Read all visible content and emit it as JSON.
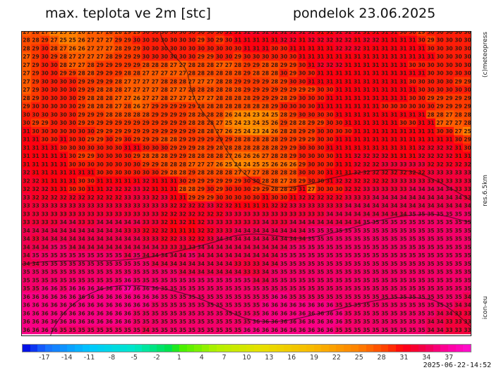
{
  "header": {
    "title": "max. teplota ve 2m [stc]",
    "date": "pondelok 23.06.2025"
  },
  "side_labels": {
    "copyright": "(c)meteopress",
    "resolution": "res.6.5km",
    "model": "icon-eu"
  },
  "timestamp": "2025-06-22-14:52",
  "colorbar": {
    "range": [
      -20,
      40
    ],
    "ticks": [
      "-17",
      "-14",
      "-11",
      "-8",
      "-5",
      "-2",
      "1",
      "4",
      "7",
      "10",
      "13",
      "16",
      "19",
      "22",
      "25",
      "28",
      "31",
      "34",
      "37"
    ],
    "stops": [
      [
        -20,
        "#0000e0"
      ],
      [
        -17,
        "#1a6cff"
      ],
      [
        -11,
        "#00c8ff"
      ],
      [
        -5,
        "#00e8c8"
      ],
      [
        0,
        "#00e040"
      ],
      [
        1,
        "#40f000"
      ],
      [
        6,
        "#b4f000"
      ],
      [
        12,
        "#e8e000"
      ],
      [
        19,
        "#f8b800"
      ],
      [
        25,
        "#ff8000"
      ],
      [
        29,
        "#ff3a00"
      ],
      [
        31,
        "#ff0010"
      ],
      [
        34,
        "#f00050"
      ],
      [
        37,
        "#ff00a0"
      ],
      [
        40,
        "#ff10d0"
      ]
    ]
  },
  "grid": [
    "27 28 27 25 25 25 26 27 27 28 28 29 29 30 30 30 30 30 30 30 30 30 31 31 32 32 32 32 32 32 32 32 31 31 32 32 32 31 31 31 31 30 30 29 30 30 30 30 30",
    "28 28 29 27 25 25 26 27 27 27 29 29 30 30 30 30 30 30 30 29 30 29 30 31 31 31 31 31 32 32 31 32 32 32 32 32 31 32 32 31 31 31 31 30 29 30 30 30 30",
    "28 29 30 28 27 26 26 27 27 27 28 29 29 30 30 30 30 30 30 30 30 30 30 30 31 31 31 30 30 31 31 31 31 31 32 32 32 31 31 31 31 31 31 31 30 30 30 30 30",
    "27 29 30 29 28 27 27 27 27 28 29 29 29 30 30 30 30 30 30 29 29 30 30 29 30 30 30 30 30 30 31 31 31 31 31 31 31 31 31 31 31 31 31 31 31 30 30 30 30",
    "27 29 30 30 28 27 27 28 29 29 29 29 29 28 28 28 27 27 28 28 28 27 27 28 29 29 28 28 29 29 30 31 32 32 32 31 31 31 31 31 31 31 30 30 30 30 30 30 30",
    "27 29 30 30 29 29 28 28 29 29 29 28 28 27 27 27 27 27 28 28 28 28 28 28 29 28 28 28 30 29 30 30 31 31 31 31 31 31 31 31 31 31 31 31 30 30 30 30 30",
    "27 29 30 30 30 30 29 29 29 29 28 27 27 27 27 28 28 28 27 27 27 28 28 29 29 29 29 28 29 30 30 31 31 31 31 31 31 31 31 31 31 31 30 30 30 30 30 29 29",
    "27 29 30 30 30 30 29 29 28 28 28 27 27 27 27 28 27 27 28 28 28 28 28 28 29 29 29 29 29 29 29 29 30 30 31 31 31 31 31 31 31 31 31 30 30 30 30 30 30",
    "28 29 30 30 30 30 29 28 28 28 27 27 26 27 27 28 27 27 27 27 27 28 28 28 28 29 29 29 28 29 30 30 30 31 31 31 31 31 31 31 31 31 30 30 29 29 29 29 29",
    "29 30 30 30 30 30 29 28 28 28 27 28 26 27 29 29 29 29 29 28 28 28 28 28 28 28 28 29 30 30 30 30 31 31 31 31 31 31 31 30 30 30 30 30 30 29 29 29 29",
    "30 30 30 30 30 30 29 29 29 28 28 28 28 28 29 29 29 29 28 28 28 28 26 24 24 23 24 25 28 29 30 30 30 30 31 31 31 31 31 31 31 31 31 31 28 28 27 28 28",
    "30 29 29 30 30 30 29 29 29 29 29 29 29 29 29 29 29 29 28 28 28 27 25 24 23 24 25 26 29 28 28 29 29 30 30 31 31 31 31 31 31 30 30 31 31 27 27 27 28",
    "31 30 30 30 30 30 30 30 29 29 29 29 29 29 29 29 29 29 29 28 28 27 26 25 24 23 24 26 28 28 29 29 30 30 30 30 31 31 31 31 31 31 31 31 31 30 30 27 25",
    "31 31 30 30 31 30 30 29 29 30 29 30 29 29 29 28 28 29 29 29 29 29 29 28 28 28 28 28 29 29 29 29 30 30 31 31 31 31 31 31 31 31 31 31 31 31 31 30 29",
    "31 31 31 31 30 30 30 30 30 30 30 31 31 30 30 30 29 29 29 28 29 28 28 28 28 28 28 28 29 29 30 30 30 31 31 31 31 31 31 31 31 31 31 32 32 32 32 31 30",
    "31 31 31 31 31 30 29 29 30 30 30 30 29 28 28 28 29 29 28 28 28 28 27 26 26 26 27 28 28 29 30 30 30 30 31 31 32 32 32 32 31 31 31 32 32 32 32 31 31",
    "31 31 31 31 31 30 30 30 30 30 30 30 30 29 29 28 28 28 27 27 27 26 25 24 24 25 25 26 26 26 29 30 30 30 31 31 32 32 32 33 33 33 33 33 32 32 32 32 32",
    "32 31 31 31 31 31 31 31 30 30 30 30 30 30 30 29 28 28 29 28 28 28 28 27 27 27 28 28 28 28 30 30 30 31 31 31 32 32 32 32 32 32 32 32 33 33 33 33 33",
    "32 32 31 31 31 31 30 30 31 31 31 31 31 32 31 31 31 30 29 29 29 29 29 29 30 30 28 28 27 28 29 30 30 31 32 32 32 32 32 32 33 33 33 33 33 33 33 33 33",
    "32 32 32 31 31 30 30 31 31 32 32 32 33 32 31 31 31 28 28 29 30 29 30 30 30 29 29 28 28 29 31 27 30 30 30 32 32 33 33 33 33 33 34 34 34 34 34 33 33",
    "33 32 32 32 32 32 32 32 32 32 32 33 33 33 32 33 31 31 29 29 29 30 30 30 30 30 31 30 30 31 32 32 32 32 32 33 33 33 34 34 34 34 34 34 34 34 34 34 33",
    "33 33 33 33 33 33 33 33 33 33 33 33 33 33 33 33 32 32 32 32 33 32 32 31 31 31 31 32 32 33 33 33 33 33 33 34 34 34 34 34 34 34 34 34 34 34 34 34 34",
    "33 33 33 33 33 33 33 33 33 33 33 33 33 33 33 32 32 32 32 32 32 32 33 33 33 33 33 33 33 33 33 33 33 34 34 34 34 34 34 34 34 34 35 35 35 35 35 35 35",
    "33 33 33 33 34 34 33 33 34 34 34 34 34 33 33 32 31 32 31 32 33 33 33 33 33 33 34 33 33 34 34 34 34 34 34 34 34 35 35 35 35 35 35 35 35 35 35 35 35",
    "34 34 34 34 34 34 34 34 34 34 34 33 33 32 32 32 31 31 31 32 32 33 33 34 34 34 34 34 34 34 34 35 35 35 35 35 35 35 35 35 35 35 35 35 35 35 35 35 35",
    "34 33 34 34 34 34 34 34 34 34 34 34 34 33 33 32 32 33 32 32 33 34 34 34 34 34 34 34 34 34 34 35 35 35 35 35 35 35 35 35 35 35 35 35 35 35 35 35 35",
    "34 34 34 35 35 34 34 34 34 34 34 34 34 34 34 33 33 33 33 34 34 34 34 34 34 34 34 34 34 35 35 35 35 35 35 35 35 35 35 35 35 35 35 35 35 35 35 35 35",
    "34 35 35 35 35 35 35 35 35 35 35 34 35 34 34 34 34 34 35 34 34 34 34 34 34 34 34 34 35 35 35 35 35 35 35 35 35 35 35 35 35 35 35 35 35 35 35 35 35",
    "34 34 35 35 35 35 35 35 35 35 35 35 35 35 34 34 34 34 34 34 34 34 34 33 33 33 34 34 35 35 35 35 35 35 35 35 35 35 35 35 35 35 35 35 35 35 35 35 35",
    "35 35 35 35 35 35 35 35 35 35 35 35 35 35 35 35 35 34 34 34 34 34 34 34 33 33 34 35 35 35 35 35 35 35 35 35 35 35 35 35 35 35 35 35 35 35 35 35 35",
    "35 35 35 35 35 35 35 35 35 35 35 36 35 35 35 35 35 35 35 35 35 35 35 35 35 34 34 35 35 35 35 35 35 35 35 35 35 35 35 35 35 35 35 35 35 35 35 35 35",
    "35 35 36 36 35 36 36 36 36 36 36 37 36 36 36 35 35 35 35 35 35 35 35 35 35 35 35 35 35 35 35 35 35 35 35 35 35 35 35 35 35 35 35 35 35 35 35 35 35",
    "36 36 36 36 36 36 36 36 36 36 36 36 36 36 36 35 35 35 35 35 35 35 35 35 35 35 35 36 36 35 35 35 35 35 35 35 35 35 35 35 35 35 35 35 35 35 35 35 34",
    "36 36 36 36 36 36 36 36 36 36 36 36 36 36 35 35 35 35 35 35 35 35 35 35 35 35 36 36 36 36 36 36 36 36 35 35 35 35 35 35 35 35 35 35 35 35 35 34 34",
    "36 36 36 36 36 36 36 36 36 36 36 36 35 35 35 35 35 35 35 35 35 35 35 35 35 35 36 36 36 36 36 36 36 36 36 35 35 35 35 35 35 35 35 35 35 34 34 33 33",
    "36 36 36 36 36 36 36 36 36 36 36 36 35 35 35 35 35 35 35 35 35 35 35 35 35 36 36 36 36 36 36 36 36 36 36 35 35 35 35 35 35 35 35 35 34 34 33 33 33",
    "36 36 36 36 35 35 35 35 35 35 35 35 35 34 35 35 35 35 35 35 35 35 35 35 36 36 36 36 36 36 36 36 36 36 35 35 35 35 35 35 35 35 35 35 34 34 33 33 33"
  ]
}
